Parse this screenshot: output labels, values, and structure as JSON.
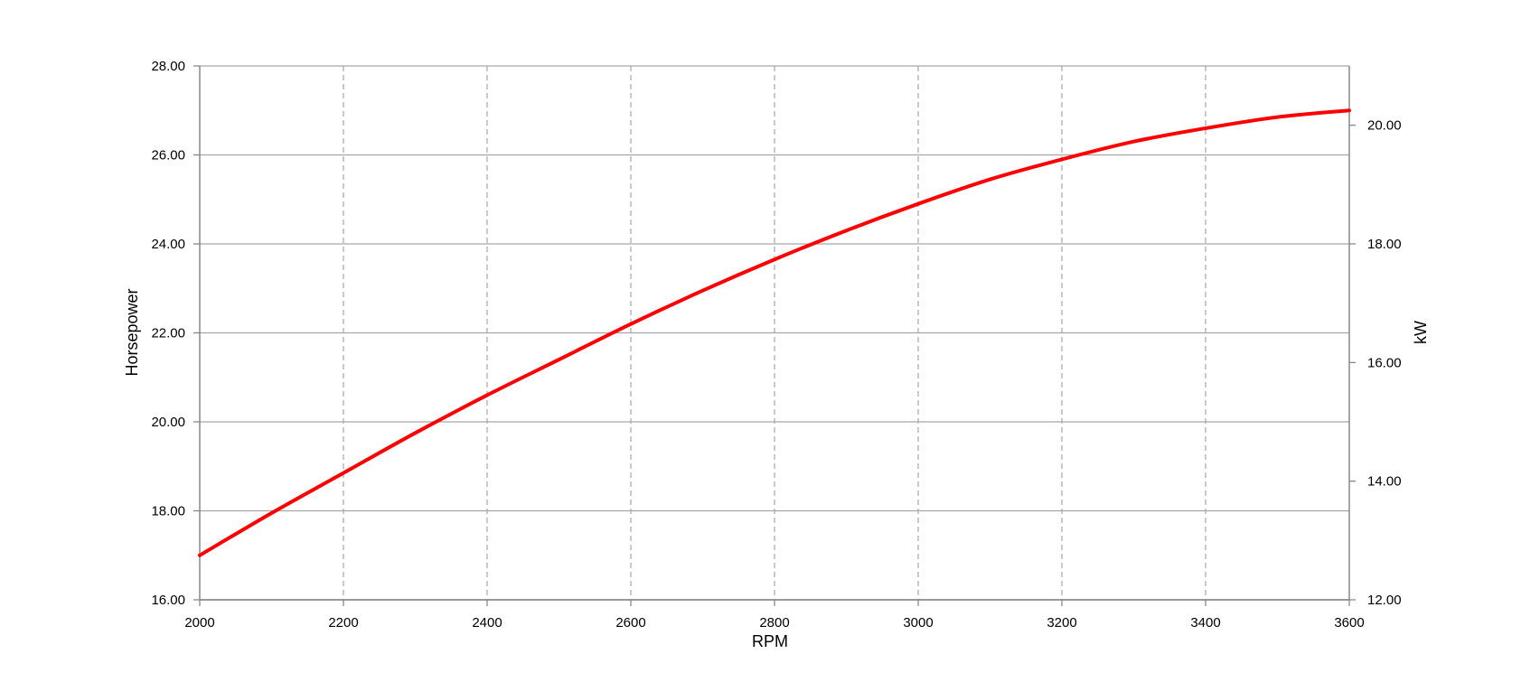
{
  "chart_data": {
    "type": "line",
    "title": "",
    "xlabel": "RPM",
    "ylabel": "Horsepower",
    "y2label": "kW",
    "xlim": [
      2000,
      3600
    ],
    "ylim": [
      16,
      28
    ],
    "y2lim": [
      12,
      21
    ],
    "x_ticks": [
      2000,
      2200,
      2400,
      2600,
      2800,
      3000,
      3200,
      3400,
      3600
    ],
    "x_tick_labels": [
      "2000",
      "2200",
      "2400",
      "2600",
      "2800",
      "3000",
      "3200",
      "3400",
      "3600"
    ],
    "y_ticks": [
      16,
      18,
      20,
      22,
      24,
      26,
      28
    ],
    "y_tick_labels": [
      "16.00",
      "18.00",
      "20.00",
      "22.00",
      "24.00",
      "26.00",
      "28.00"
    ],
    "y2_ticks": [
      12,
      14,
      16,
      18,
      20
    ],
    "y2_tick_labels": [
      "12.00",
      "14.00",
      "16.00",
      "18.00",
      "20.00"
    ],
    "grid": {
      "horizontal": "solid",
      "vertical": "dashed"
    },
    "colors": {
      "line": "#ff0000",
      "grid": "#a6a6a6",
      "axis": "#808080"
    },
    "series": [
      {
        "x": [
          2000,
          2100,
          2200,
          2300,
          2400,
          2500,
          2600,
          2700,
          2800,
          2900,
          3000,
          3100,
          3200,
          3300,
          3400,
          3500,
          3600
        ],
        "values": [
          17.0,
          17.95,
          18.85,
          19.75,
          20.6,
          21.4,
          22.2,
          22.95,
          23.65,
          24.3,
          24.9,
          25.45,
          25.9,
          26.3,
          26.6,
          26.85,
          27.0
        ]
      }
    ]
  }
}
